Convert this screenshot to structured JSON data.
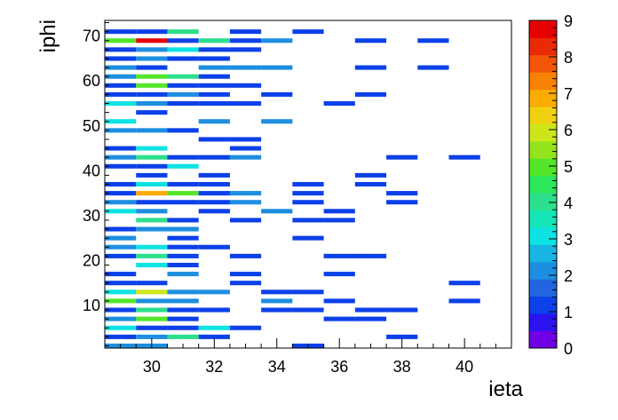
{
  "chart_data": {
    "type": "heatmap",
    "title": "",
    "xlabel": "ieta",
    "ylabel": "iphi",
    "xlim": [
      28.5,
      41.5
    ],
    "ylim": [
      0.5,
      73.5
    ],
    "x_ticks": [
      30,
      32,
      34,
      36,
      38,
      40
    ],
    "y_ticks": [
      10,
      20,
      30,
      40,
      50,
      60,
      70
    ],
    "zlim": [
      0,
      9
    ],
    "z_ticks": [
      0,
      1,
      2,
      3,
      4,
      5,
      6,
      7,
      8,
      9
    ],
    "palette": [
      "#7000e6",
      "#2b13f0",
      "#0c40e8",
      "#1f66df",
      "#1d8ee0",
      "#17b5e3",
      "#0de3e3",
      "#14e6b7",
      "#2cdf8c",
      "#2ce65b",
      "#54e629",
      "#94e31c",
      "#cde61a",
      "#f0d110",
      "#fbab02",
      "#f88204",
      "#f15506",
      "#ea2a05",
      "#e60000"
    ],
    "cells": [
      {
        "x": 29,
        "y": 1,
        "v": 2
      },
      {
        "x": 30,
        "y": 1,
        "v": 2
      },
      {
        "x": 35,
        "y": 1,
        "v": 1
      },
      {
        "x": 29,
        "y": 3,
        "v": 1
      },
      {
        "x": 30,
        "y": 3,
        "v": 2
      },
      {
        "x": 31,
        "y": 3,
        "v": 4
      },
      {
        "x": 32,
        "y": 3,
        "v": 1
      },
      {
        "x": 38,
        "y": 3,
        "v": 1
      },
      {
        "x": 29,
        "y": 5,
        "v": 3
      },
      {
        "x": 30,
        "y": 5,
        "v": 1
      },
      {
        "x": 31,
        "y": 5,
        "v": 1
      },
      {
        "x": 32,
        "y": 5,
        "v": 3
      },
      {
        "x": 33,
        "y": 5,
        "v": 1
      },
      {
        "x": 29,
        "y": 7,
        "v": 2
      },
      {
        "x": 30,
        "y": 7,
        "v": 5
      },
      {
        "x": 31,
        "y": 7,
        "v": 1
      },
      {
        "x": 36,
        "y": 7,
        "v": 1
      },
      {
        "x": 37,
        "y": 7,
        "v": 1
      },
      {
        "x": 29,
        "y": 9,
        "v": 1
      },
      {
        "x": 30,
        "y": 9,
        "v": 4
      },
      {
        "x": 31,
        "y": 9,
        "v": 1
      },
      {
        "x": 32,
        "y": 9,
        "v": 1
      },
      {
        "x": 34,
        "y": 9,
        "v": 1
      },
      {
        "x": 35,
        "y": 9,
        "v": 1
      },
      {
        "x": 37,
        "y": 9,
        "v": 1
      },
      {
        "x": 38,
        "y": 9,
        "v": 1
      },
      {
        "x": 29,
        "y": 11,
        "v": 5
      },
      {
        "x": 30,
        "y": 11,
        "v": 2
      },
      {
        "x": 31,
        "y": 11,
        "v": 2
      },
      {
        "x": 34,
        "y": 11,
        "v": 2
      },
      {
        "x": 36,
        "y": 11,
        "v": 1
      },
      {
        "x": 40,
        "y": 11,
        "v": 1
      },
      {
        "x": 29,
        "y": 13,
        "v": 3
      },
      {
        "x": 30,
        "y": 13,
        "v": 6
      },
      {
        "x": 31,
        "y": 13,
        "v": 2
      },
      {
        "x": 32,
        "y": 13,
        "v": 2
      },
      {
        "x": 34,
        "y": 13,
        "v": 1
      },
      {
        "x": 35,
        "y": 13,
        "v": 1
      },
      {
        "x": 29,
        "y": 15,
        "v": 1
      },
      {
        "x": 30,
        "y": 15,
        "v": 1
      },
      {
        "x": 33,
        "y": 15,
        "v": 1
      },
      {
        "x": 40,
        "y": 15,
        "v": 1
      },
      {
        "x": 29,
        "y": 17,
        "v": 1
      },
      {
        "x": 31,
        "y": 17,
        "v": 2
      },
      {
        "x": 33,
        "y": 17,
        "v": 1
      },
      {
        "x": 36,
        "y": 17,
        "v": 1
      },
      {
        "x": 30,
        "y": 19,
        "v": 3
      },
      {
        "x": 31,
        "y": 19,
        "v": 1
      },
      {
        "x": 29,
        "y": 21,
        "v": 1
      },
      {
        "x": 30,
        "y": 21,
        "v": 4
      },
      {
        "x": 31,
        "y": 21,
        "v": 1
      },
      {
        "x": 33,
        "y": 21,
        "v": 1
      },
      {
        "x": 36,
        "y": 21,
        "v": 1
      },
      {
        "x": 37,
        "y": 21,
        "v": 1
      },
      {
        "x": 29,
        "y": 23,
        "v": 2
      },
      {
        "x": 30,
        "y": 23,
        "v": 3
      },
      {
        "x": 31,
        "y": 23,
        "v": 1
      },
      {
        "x": 32,
        "y": 23,
        "v": 1
      },
      {
        "x": 29,
        "y": 25,
        "v": 2
      },
      {
        "x": 31,
        "y": 25,
        "v": 1
      },
      {
        "x": 35,
        "y": 25,
        "v": 1
      },
      {
        "x": 29,
        "y": 27,
        "v": 1
      },
      {
        "x": 30,
        "y": 27,
        "v": 2
      },
      {
        "x": 31,
        "y": 27,
        "v": 2
      },
      {
        "x": 30,
        "y": 29,
        "v": 4
      },
      {
        "x": 31,
        "y": 29,
        "v": 1
      },
      {
        "x": 33,
        "y": 29,
        "v": 1
      },
      {
        "x": 35,
        "y": 29,
        "v": 1
      },
      {
        "x": 36,
        "y": 29,
        "v": 1
      },
      {
        "x": 29,
        "y": 31,
        "v": 3
      },
      {
        "x": 30,
        "y": 31,
        "v": 2
      },
      {
        "x": 32,
        "y": 31,
        "v": 1
      },
      {
        "x": 34,
        "y": 31,
        "v": 2
      },
      {
        "x": 36,
        "y": 31,
        "v": 1
      },
      {
        "x": 29,
        "y": 33,
        "v": 2
      },
      {
        "x": 30,
        "y": 33,
        "v": 1
      },
      {
        "x": 31,
        "y": 33,
        "v": 1
      },
      {
        "x": 32,
        "y": 33,
        "v": 1
      },
      {
        "x": 33,
        "y": 33,
        "v": 2
      },
      {
        "x": 35,
        "y": 33,
        "v": 1
      },
      {
        "x": 38,
        "y": 33,
        "v": 1
      },
      {
        "x": 29,
        "y": 35,
        "v": 1
      },
      {
        "x": 30,
        "y": 35,
        "v": 7
      },
      {
        "x": 31,
        "y": 35,
        "v": 5
      },
      {
        "x": 32,
        "y": 35,
        "v": 1
      },
      {
        "x": 33,
        "y": 35,
        "v": 2
      },
      {
        "x": 35,
        "y": 35,
        "v": 1
      },
      {
        "x": 38,
        "y": 35,
        "v": 1
      },
      {
        "x": 29,
        "y": 37,
        "v": 1
      },
      {
        "x": 30,
        "y": 37,
        "v": 3
      },
      {
        "x": 31,
        "y": 37,
        "v": 1
      },
      {
        "x": 32,
        "y": 37,
        "v": 1
      },
      {
        "x": 35,
        "y": 37,
        "v": 1
      },
      {
        "x": 37,
        "y": 37,
        "v": 1
      },
      {
        "x": 30,
        "y": 39,
        "v": 1
      },
      {
        "x": 32,
        "y": 39,
        "v": 1
      },
      {
        "x": 37,
        "y": 39,
        "v": 1
      },
      {
        "x": 29,
        "y": 41,
        "v": 1
      },
      {
        "x": 30,
        "y": 41,
        "v": 1
      },
      {
        "x": 31,
        "y": 41,
        "v": 3
      },
      {
        "x": 29,
        "y": 43,
        "v": 2
      },
      {
        "x": 30,
        "y": 43,
        "v": 4
      },
      {
        "x": 31,
        "y": 43,
        "v": 1
      },
      {
        "x": 32,
        "y": 43,
        "v": 1
      },
      {
        "x": 33,
        "y": 43,
        "v": 2
      },
      {
        "x": 38,
        "y": 43,
        "v": 1
      },
      {
        "x": 40,
        "y": 43,
        "v": 1
      },
      {
        "x": 29,
        "y": 45,
        "v": 1
      },
      {
        "x": 30,
        "y": 45,
        "v": 3
      },
      {
        "x": 33,
        "y": 45,
        "v": 1
      },
      {
        "x": 32,
        "y": 47,
        "v": 1
      },
      {
        "x": 33,
        "y": 47,
        "v": 1
      },
      {
        "x": 29,
        "y": 49,
        "v": 2
      },
      {
        "x": 30,
        "y": 49,
        "v": 2
      },
      {
        "x": 31,
        "y": 49,
        "v": 1
      },
      {
        "x": 29,
        "y": 51,
        "v": 3
      },
      {
        "x": 32,
        "y": 51,
        "v": 2
      },
      {
        "x": 34,
        "y": 51,
        "v": 2
      },
      {
        "x": 30,
        "y": 53,
        "v": 1
      },
      {
        "x": 29,
        "y": 55,
        "v": 3
      },
      {
        "x": 30,
        "y": 55,
        "v": 2
      },
      {
        "x": 31,
        "y": 55,
        "v": 1
      },
      {
        "x": 32,
        "y": 55,
        "v": 1
      },
      {
        "x": 33,
        "y": 55,
        "v": 1
      },
      {
        "x": 36,
        "y": 55,
        "v": 1
      },
      {
        "x": 29,
        "y": 57,
        "v": 1
      },
      {
        "x": 30,
        "y": 57,
        "v": 1
      },
      {
        "x": 31,
        "y": 57,
        "v": 2
      },
      {
        "x": 32,
        "y": 57,
        "v": 1
      },
      {
        "x": 34,
        "y": 57,
        "v": 1
      },
      {
        "x": 37,
        "y": 57,
        "v": 1
      },
      {
        "x": 29,
        "y": 59,
        "v": 1
      },
      {
        "x": 30,
        "y": 59,
        "v": 5
      },
      {
        "x": 31,
        "y": 59,
        "v": 1
      },
      {
        "x": 32,
        "y": 59,
        "v": 1
      },
      {
        "x": 33,
        "y": 59,
        "v": 1
      },
      {
        "x": 29,
        "y": 61,
        "v": 2
      },
      {
        "x": 30,
        "y": 61,
        "v": 5
      },
      {
        "x": 31,
        "y": 61,
        "v": 4
      },
      {
        "x": 32,
        "y": 61,
        "v": 1
      },
      {
        "x": 29,
        "y": 63,
        "v": 2
      },
      {
        "x": 30,
        "y": 63,
        "v": 1
      },
      {
        "x": 32,
        "y": 63,
        "v": 2
      },
      {
        "x": 33,
        "y": 63,
        "v": 2
      },
      {
        "x": 34,
        "y": 63,
        "v": 2
      },
      {
        "x": 37,
        "y": 63,
        "v": 1
      },
      {
        "x": 39,
        "y": 63,
        "v": 1
      },
      {
        "x": 29,
        "y": 65,
        "v": 1
      },
      {
        "x": 30,
        "y": 65,
        "v": 2
      },
      {
        "x": 31,
        "y": 65,
        "v": 1
      },
      {
        "x": 32,
        "y": 65,
        "v": 1
      },
      {
        "x": 29,
        "y": 67,
        "v": 1
      },
      {
        "x": 30,
        "y": 67,
        "v": 2
      },
      {
        "x": 31,
        "y": 67,
        "v": 3
      },
      {
        "x": 32,
        "y": 67,
        "v": 1
      },
      {
        "x": 33,
        "y": 67,
        "v": 1
      },
      {
        "x": 29,
        "y": 69,
        "v": 5
      },
      {
        "x": 30,
        "y": 69,
        "v": 9
      },
      {
        "x": 31,
        "y": 69,
        "v": 1
      },
      {
        "x": 32,
        "y": 69,
        "v": 4
      },
      {
        "x": 33,
        "y": 69,
        "v": 1
      },
      {
        "x": 34,
        "y": 69,
        "v": 2
      },
      {
        "x": 37,
        "y": 69,
        "v": 1
      },
      {
        "x": 39,
        "y": 69,
        "v": 1
      },
      {
        "x": 29,
        "y": 71,
        "v": 1
      },
      {
        "x": 30,
        "y": 71,
        "v": 1
      },
      {
        "x": 31,
        "y": 71,
        "v": 4
      },
      {
        "x": 33,
        "y": 71,
        "v": 1
      },
      {
        "x": 35,
        "y": 71,
        "v": 1
      }
    ]
  }
}
